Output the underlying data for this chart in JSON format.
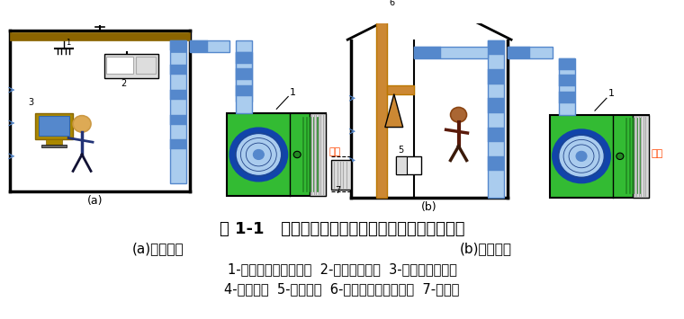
{
  "title_line": "图 1-1   民用建筑和工业建筑的采暖通风和空调系统",
  "subtitle_left": "(a)民用建筑",
  "subtitle_right": "(b)工业建筑",
  "caption_line1": "1-新风的空气处理机组  2-风机盘管机组  3-电器和电子设备",
  "caption_line2": "4-照明灯具  5-工艺设备  6-排风风机及排风系统  7-散热器",
  "label_a": "(a)",
  "label_b": "(b)",
  "bg_color": "#ffffff",
  "text_color": "#000000",
  "title_fontsize": 13,
  "subtitle_fontsize": 11,
  "caption_fontsize": 10.5,
  "fig_width": 7.6,
  "fig_height": 3.55,
  "dpi": 100,
  "xinf_color": "#FF4500",
  "duct_blue": "#5588CC",
  "duct_light": "#AACCEE",
  "green_main": "#33BB33",
  "green_dark": "#228822",
  "fan_dark": "#1144AA",
  "orange_pipe": "#CC8833"
}
